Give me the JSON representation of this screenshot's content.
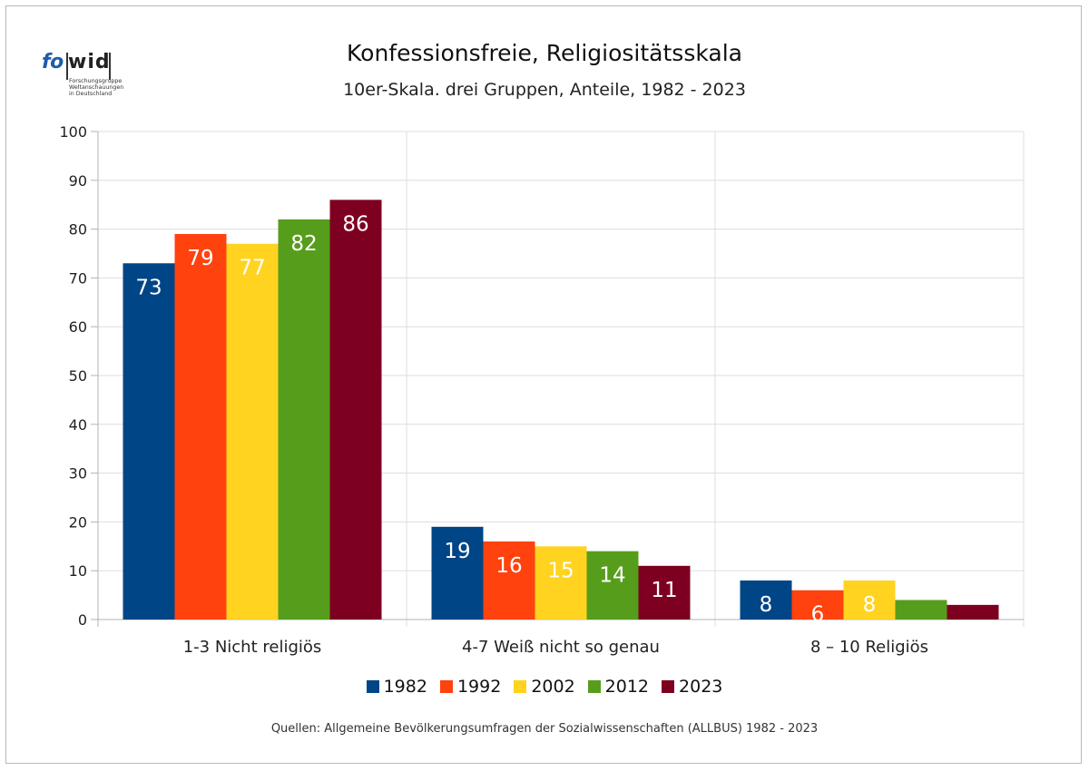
{
  "logo": {
    "wordmark_left": "fo",
    "wordmark_right": "wid",
    "tagline": "Forschungsgruppe\nWeltanschauungen\nin Deutschland"
  },
  "header": {
    "title": "Konfessionsfreie, Religiositätsskala",
    "subtitle": "10er-Skala. drei Gruppen, Anteile, 1982 - 2023"
  },
  "footer": {
    "source": "Quellen: Allgemeine Bevölkerungsumfragen der Sozialwissenschaften (ALLBUS) 1982 - 2023"
  },
  "chart_data": {
    "type": "bar",
    "categories": [
      "1-3 Nicht religiös",
      "4-7 Weiß nicht so genau",
      "8 – 10 Religiös"
    ],
    "series": [
      {
        "name": "1982",
        "color": "#004586",
        "values": [
          73,
          19,
          8
        ],
        "labels": [
          "73",
          "19",
          "8"
        ]
      },
      {
        "name": "1992",
        "color": "#ff420e",
        "values": [
          79,
          16,
          6
        ],
        "labels": [
          "79",
          "16",
          "6"
        ]
      },
      {
        "name": "2002",
        "color": "#ffd320",
        "values": [
          77,
          15,
          8
        ],
        "labels": [
          "77",
          "15",
          "8"
        ]
      },
      {
        "name": "2012",
        "color": "#579d1c",
        "values": [
          82,
          14,
          4
        ],
        "labels": [
          "82",
          "14",
          ""
        ]
      },
      {
        "name": "2023",
        "color": "#7e0021",
        "values": [
          86,
          11,
          3
        ],
        "labels": [
          "86",
          "11",
          ""
        ]
      }
    ],
    "ylim": [
      0,
      100
    ],
    "yticks": [
      "0",
      "10",
      "20",
      "30",
      "40",
      "50",
      "60",
      "70",
      "80",
      "90",
      "100"
    ],
    "grid": true,
    "legend_position": "bottom",
    "data_label_color": "#ffffff"
  }
}
